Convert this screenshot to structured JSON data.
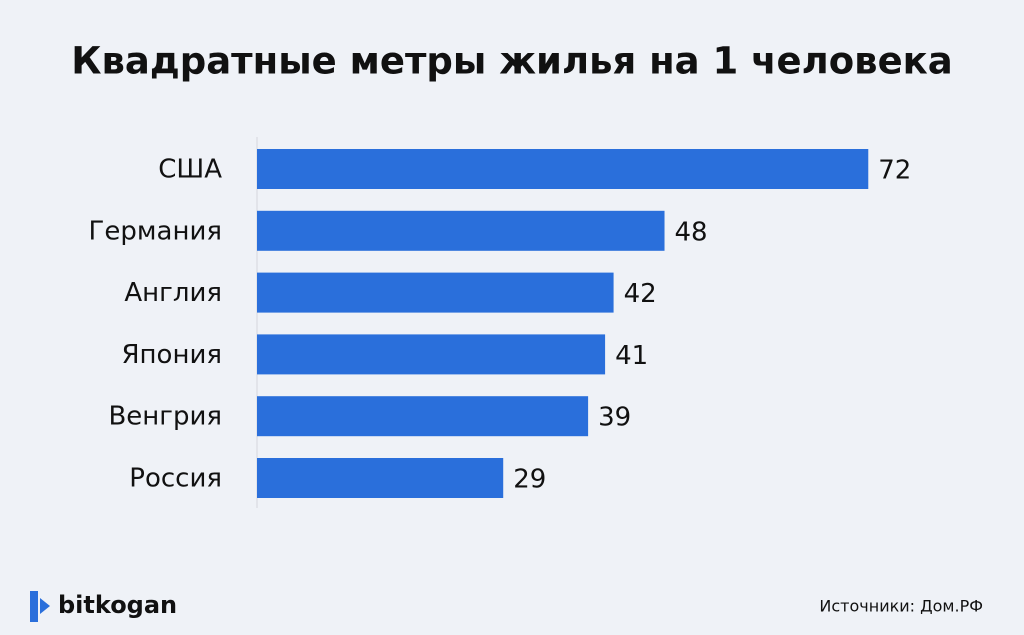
{
  "chart_data": {
    "type": "bar",
    "orientation": "horizontal",
    "title": "Квадратные метры жилья на 1 человека",
    "categories": [
      "США",
      "Германия",
      "Англия",
      "Япония",
      "Венгрия",
      "Россия"
    ],
    "values": [
      72,
      48,
      42,
      41,
      39,
      29
    ],
    "color": "#2a6fdb"
  },
  "footer": {
    "brand": "bitkogan",
    "source": "Источники: Дом.РФ"
  }
}
